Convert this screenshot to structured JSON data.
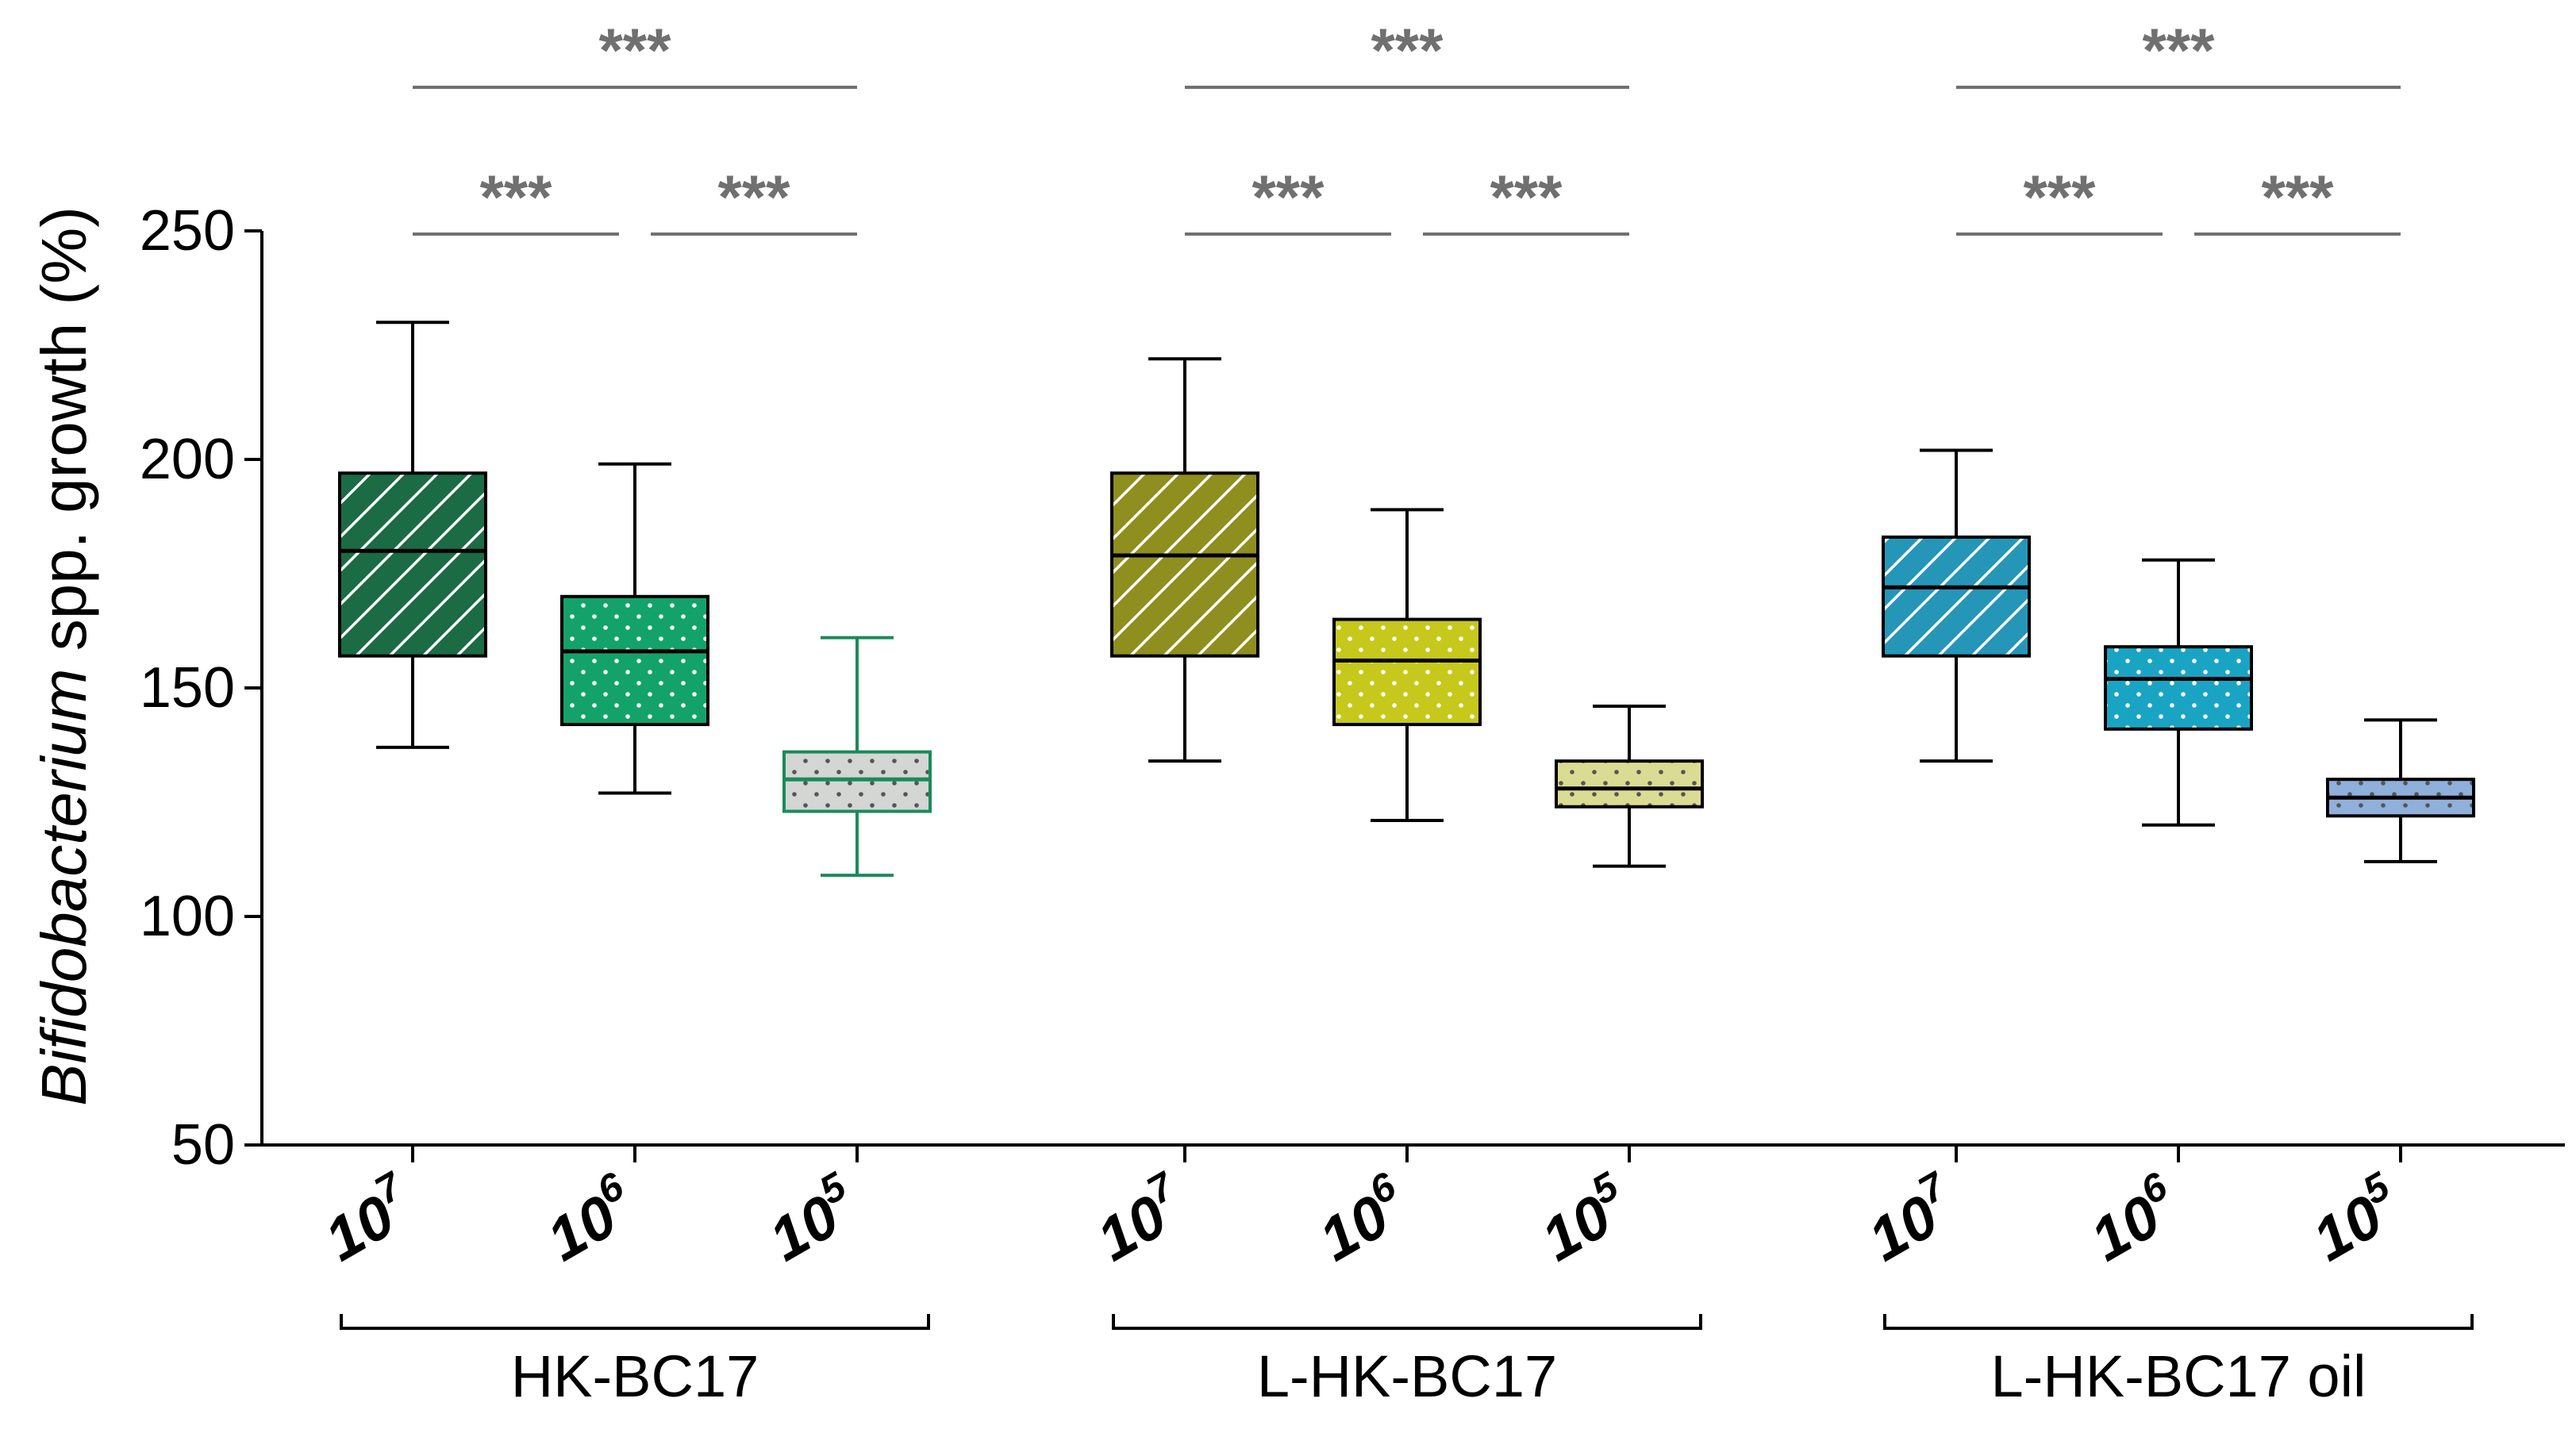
{
  "chart_data": {
    "type": "box",
    "title": "",
    "ylabel_italic": "Bifidobacterium",
    "ylabel_rest": " spp. growth (%)",
    "ylim": [
      50,
      250
    ],
    "yticks": [
      50,
      100,
      150,
      200,
      250
    ],
    "colors": {
      "axis": "#000000",
      "significance": "#707070",
      "hk_dark": "#1b6b45",
      "hk_mid": "#13a36a",
      "hk_light": "#d3d6d3",
      "hk_light_edge": "#1b8a5a",
      "l_dark": "#8f8f1f",
      "l_mid": "#c7c81c",
      "l_light": "#dbdc93",
      "oil_dark": "#2596b8",
      "oil_mid": "#1aa4c4",
      "oil_light": "#8fb0da"
    },
    "groups": [
      {
        "name": "HK-BC17",
        "boxes": [
          {
            "label_base": "10",
            "label_exp": "7",
            "whisker_low": 137,
            "q1": 157,
            "median": 180,
            "q3": 197,
            "whisker_high": 230,
            "pattern": "hatch",
            "fill": "#1b6b45",
            "edge": "#000000"
          },
          {
            "label_base": "10",
            "label_exp": "6",
            "whisker_low": 127,
            "q1": 142,
            "median": 158,
            "q3": 170,
            "whisker_high": 199,
            "pattern": "dots",
            "fill": "#13a36a",
            "edge": "#000000"
          },
          {
            "label_base": "10",
            "label_exp": "5",
            "whisker_low": 109,
            "q1": 123,
            "median": 130,
            "q3": 136,
            "whisker_high": 161,
            "pattern": "dots",
            "fill": "#d3d6d3",
            "edge": "#1b8a5a"
          }
        ],
        "significance": [
          "***",
          "***",
          "***"
        ]
      },
      {
        "name": "L-HK-BC17",
        "boxes": [
          {
            "label_base": "10",
            "label_exp": "7",
            "whisker_low": 134,
            "q1": 157,
            "median": 179,
            "q3": 197,
            "whisker_high": 222,
            "pattern": "hatch",
            "fill": "#8f8f1f",
            "edge": "#000000"
          },
          {
            "label_base": "10",
            "label_exp": "6",
            "whisker_low": 121,
            "q1": 142,
            "median": 156,
            "q3": 165,
            "whisker_high": 189,
            "pattern": "dots",
            "fill": "#c7c81c",
            "edge": "#000000"
          },
          {
            "label_base": "10",
            "label_exp": "5",
            "whisker_low": 111,
            "q1": 124,
            "median": 128,
            "q3": 134,
            "whisker_high": 146,
            "pattern": "dots",
            "fill": "#dbdc93",
            "edge": "#000000"
          }
        ],
        "significance": [
          "***",
          "***",
          "***"
        ]
      },
      {
        "name": "L-HK-BC17 oil",
        "boxes": [
          {
            "label_base": "10",
            "label_exp": "7",
            "whisker_low": 134,
            "q1": 157,
            "median": 172,
            "q3": 183,
            "whisker_high": 202,
            "pattern": "hatch",
            "fill": "#2596b8",
            "edge": "#000000"
          },
          {
            "label_base": "10",
            "label_exp": "6",
            "whisker_low": 120,
            "q1": 141,
            "median": 152,
            "q3": 159,
            "whisker_high": 178,
            "pattern": "dots",
            "fill": "#1aa4c4",
            "edge": "#000000"
          },
          {
            "label_base": "10",
            "label_exp": "5",
            "whisker_low": 112,
            "q1": 122,
            "median": 126,
            "q3": 130,
            "whisker_high": 143,
            "pattern": "dots",
            "fill": "#8fb0da",
            "edge": "#000000"
          }
        ],
        "significance": [
          "***",
          "***",
          "***"
        ]
      }
    ]
  }
}
